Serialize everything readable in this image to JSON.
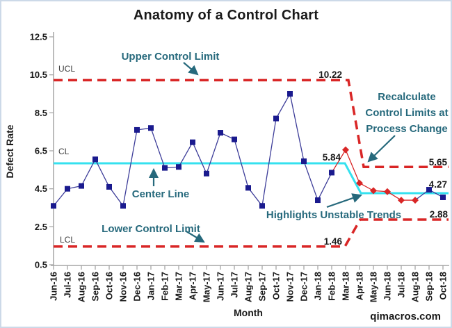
{
  "title": "Anatomy of a Control Chart",
  "watermark": "qimacros.com",
  "colors": {
    "limit_red": "#d92626",
    "center_cyan": "#35e1ef",
    "point_navy": "#1a1a8e",
    "line_navy": "#3d3d99",
    "unstable_red": "#d92626",
    "annotation_teal": "#26697c",
    "axis_gray": "#a6a6a6",
    "text_black": "#1a1a1a"
  },
  "annotations": {
    "upper": "Upper Control Limit",
    "center": "Center Line",
    "lower": "Lower Control Limit",
    "recalc_line1": "Recalculate",
    "recalc_line2": "Control Limits at",
    "recalc_line3": "Process Change",
    "highlights": "Highlights Unstable Trends"
  },
  "chart_data": {
    "type": "line",
    "title": "Anatomy of a Control Chart",
    "xlabel": "Month",
    "ylabel": "Defect Rate",
    "ylim": [
      0.5,
      12.5
    ],
    "yticks": [
      12.5,
      10.5,
      8.5,
      6.5,
      4.5,
      2.5,
      0.5
    ],
    "grid": false,
    "legend": false,
    "categories": [
      "Jun-16",
      "Jul-16",
      "Aug-16",
      "Sep-16",
      "Oct-16",
      "Nov-16",
      "Dec-16",
      "Jan-17",
      "Feb-17",
      "Mar-17",
      "Apr-17",
      "May-17",
      "Jun-17",
      "Jul-17",
      "Aug-17",
      "Sep-17",
      "Oct-17",
      "Nov-17",
      "Dec-17",
      "Jan-18",
      "Feb-18",
      "Mar-18",
      "Apr-18",
      "May-18",
      "Jun-18",
      "Jul-18",
      "Aug-18",
      "Sep-18",
      "Oct-18"
    ],
    "series": [
      {
        "name": "Defect Rate",
        "values": [
          3.6,
          4.5,
          4.65,
          6.05,
          4.6,
          3.6,
          7.6,
          7.7,
          5.6,
          5.65,
          6.95,
          5.3,
          7.45,
          7.1,
          4.55,
          3.6,
          8.2,
          9.5,
          5.95,
          3.9,
          5.35,
          6.55,
          4.8,
          4.4,
          4.35,
          3.9,
          3.9,
          4.45,
          4.05
        ]
      }
    ],
    "unstable_point_indices": [
      21,
      22,
      23,
      24,
      25,
      26
    ],
    "unstable_line_range": [
      20,
      26
    ],
    "side_labels": {
      "ucl": "UCL",
      "cl": "CL",
      "lcl": "LCL"
    },
    "phases": [
      {
        "range": [
          "Jun-16",
          "Mar-18"
        ],
        "ucl": 10.22,
        "cl": 5.84,
        "lcl": 1.46
      },
      {
        "range": [
          "Apr-18",
          "Oct-18"
        ],
        "ucl": 5.65,
        "cl": 4.27,
        "lcl": 2.88
      }
    ]
  }
}
